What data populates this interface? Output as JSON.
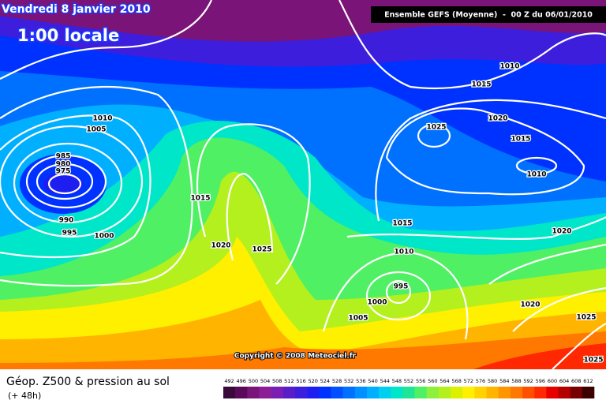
{
  "header": {
    "date": "Vendredi 8 janvier 2010",
    "time": "1:00 locale",
    "model": "Ensemble GEFS (Moyenne)  -  00 Z du 06/01/2010"
  },
  "copyright": "Copyright © 2008 Meteociel.fr",
  "legend": {
    "title": "Géop. Z500 & pression au sol",
    "lead": "(+ 48h)",
    "levels": [
      492,
      496,
      500,
      504,
      508,
      512,
      516,
      520,
      524,
      528,
      532,
      536,
      540,
      544,
      548,
      552,
      556,
      560,
      564,
      568,
      572,
      576,
      580,
      584,
      588,
      592,
      596,
      600,
      604,
      608,
      612
    ],
    "colors": [
      "#3a0a3a",
      "#5a0a5a",
      "#7a1478",
      "#8c1e96",
      "#7a1eb4",
      "#5a1ec8",
      "#3c1edc",
      "#1e1ef0",
      "#0032ff",
      "#0050ff",
      "#0070ff",
      "#0090ff",
      "#00b0ff",
      "#00d0f0",
      "#00e6c8",
      "#1ee696",
      "#50f064",
      "#8cf03c",
      "#b4f01e",
      "#dcf000",
      "#fff000",
      "#ffd200",
      "#ffb400",
      "#ff9600",
      "#ff7800",
      "#ff5000",
      "#ff2800",
      "#e60000",
      "#b40000",
      "#780000",
      "#3c0000"
    ]
  },
  "isobar_labels": [
    "1010",
    "1005",
    "985",
    "980",
    "975",
    "990",
    "995",
    "1000",
    "1015",
    "1020",
    "1025",
    "1015",
    "1010",
    "995",
    "1000",
    "1005",
    "1010",
    "1015",
    "1025",
    "1020",
    "1015",
    "1010",
    "1020",
    "1020",
    "1025",
    "1025"
  ]
}
